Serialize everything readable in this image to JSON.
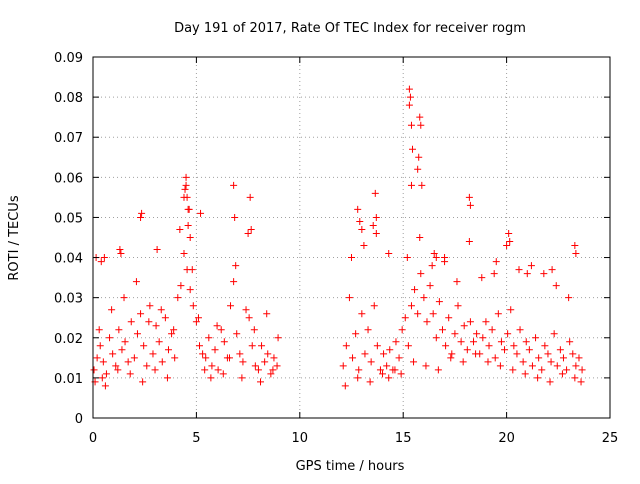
{
  "chart_data": {
    "type": "scatter",
    "title": "Day 191 of 2017, Rate Of TEC Index for receiver rogm",
    "xlabel": "GPS time / hours",
    "ylabel": "ROTI / TECUs",
    "xlim": [
      0,
      25
    ],
    "ylim": [
      0,
      0.09
    ],
    "xticks": [
      0,
      5,
      10,
      15,
      20,
      25
    ],
    "yticks": [
      0,
      0.01,
      0.02,
      0.03,
      0.04,
      0.05,
      0.06,
      0.07,
      0.08,
      0.09
    ],
    "xtick_labels": [
      "0",
      "5",
      "10",
      "15",
      "20",
      "25"
    ],
    "ytick_labels": [
      "0",
      "0.01",
      "0.02",
      "0.03",
      "0.04",
      "0.05",
      "0.06",
      "0.07",
      "0.08",
      "0.09"
    ],
    "grid": true,
    "marker": "+",
    "color": "#ff0000",
    "series": [
      {
        "x": [
          0.05,
          0.2,
          0.35,
          0.5,
          0.65,
          0.8,
          0.95,
          1.1,
          1.25,
          1.4,
          1.55,
          1.7,
          1.85,
          2.0,
          2.15,
          2.3,
          2.45,
          2.6,
          2.75,
          2.9,
          3.05,
          3.2,
          3.35,
          3.5,
          3.65,
          3.8,
          3.95,
          4.1,
          4.25,
          4.4,
          4.55,
          4.7,
          4.85,
          5.0,
          5.15,
          5.3,
          5.45,
          5.6,
          5.75,
          5.9,
          6.05,
          6.2,
          6.35,
          6.5,
          6.65,
          6.8,
          6.95,
          7.1,
          7.25,
          7.4,
          7.55,
          7.7,
          7.85,
          8.0,
          8.15,
          8.3,
          8.45,
          8.6,
          8.75,
          8.9,
          0.1,
          0.3,
          0.45,
          0.6,
          0.9,
          1.2,
          1.5,
          1.8,
          2.1,
          2.4,
          2.7,
          3.0,
          3.3,
          3.6,
          3.9,
          4.2,
          4.4,
          4.5,
          4.6,
          4.7,
          4.8,
          5.1,
          5.4,
          5.7,
          6.0,
          6.3,
          6.6,
          6.9,
          7.2,
          7.5,
          7.8,
          8.1,
          8.4,
          8.7,
          8.95,
          0.15,
          0.4,
          0.55,
          1.3,
          2.3,
          2.35,
          4.5,
          4.55,
          4.45,
          4.6,
          4.65,
          5.2,
          6.8,
          6.85,
          7.6,
          7.65,
          3.1,
          1.35,
          12.1,
          12.25,
          12.4,
          12.55,
          12.7,
          12.85,
          13.0,
          13.15,
          13.3,
          13.45,
          13.6,
          13.75,
          13.9,
          14.05,
          14.2,
          14.35,
          14.5,
          14.65,
          14.8,
          14.95,
          15.1,
          15.25,
          15.4,
          15.55,
          15.7,
          15.85,
          16.0,
          16.15,
          16.3,
          16.45,
          16.6,
          16.75,
          16.9,
          17.05,
          17.2,
          17.35,
          17.5,
          17.65,
          17.8,
          17.95,
          18.1,
          18.25,
          18.4,
          18.55,
          18.7,
          18.85,
          19.0,
          19.15,
          19.3,
          19.45,
          19.6,
          19.75,
          19.9,
          20.05,
          20.2,
          20.35,
          20.5,
          20.65,
          20.8,
          20.95,
          21.1,
          21.25,
          21.4,
          21.55,
          21.7,
          21.85,
          22.0,
          22.15,
          22.3,
          22.45,
          22.6,
          22.75,
          22.9,
          23.05,
          23.2,
          23.35,
          23.5,
          23.65,
          12.2,
          12.5,
          12.8,
          13.1,
          13.4,
          13.7,
          14.0,
          14.3,
          14.6,
          14.9,
          15.2,
          15.5,
          15.8,
          16.1,
          16.4,
          16.7,
          17.0,
          17.3,
          17.6,
          17.9,
          18.2,
          18.5,
          18.8,
          19.1,
          19.4,
          19.7,
          20.0,
          20.3,
          20.6,
          20.9,
          21.2,
          21.5,
          21.8,
          22.1,
          22.4,
          22.7,
          23.0,
          23.3,
          23.6,
          15.3,
          15.35,
          15.4,
          15.45,
          15.3,
          15.4,
          15.8,
          15.85,
          15.75,
          15.7,
          15.9,
          13.65,
          13.7,
          13.55,
          12.8,
          12.9,
          18.2,
          18.25,
          20.1,
          20.15,
          23.3,
          23.35,
          16.5,
          16.6,
          17.0,
          21.0,
          22.2,
          19.5,
          14.3,
          13.0
        ],
        "y": [
          0.012,
          0.015,
          0.018,
          0.014,
          0.011,
          0.02,
          0.016,
          0.013,
          0.022,
          0.017,
          0.019,
          0.014,
          0.024,
          0.015,
          0.021,
          0.026,
          0.018,
          0.013,
          0.028,
          0.016,
          0.023,
          0.019,
          0.014,
          0.025,
          0.017,
          0.021,
          0.015,
          0.03,
          0.033,
          0.041,
          0.037,
          0.032,
          0.028,
          0.024,
          0.018,
          0.016,
          0.015,
          0.02,
          0.013,
          0.017,
          0.012,
          0.022,
          0.019,
          0.015,
          0.028,
          0.034,
          0.021,
          0.016,
          0.014,
          0.027,
          0.025,
          0.018,
          0.013,
          0.012,
          0.018,
          0.014,
          0.016,
          0.011,
          0.015,
          0.013,
          0.009,
          0.022,
          0.01,
          0.008,
          0.027,
          0.012,
          0.03,
          0.011,
          0.034,
          0.009,
          0.024,
          0.012,
          0.027,
          0.01,
          0.022,
          0.047,
          0.055,
          0.058,
          0.052,
          0.045,
          0.037,
          0.025,
          0.012,
          0.01,
          0.023,
          0.011,
          0.015,
          0.038,
          0.01,
          0.046,
          0.022,
          0.009,
          0.026,
          0.012,
          0.02,
          0.04,
          0.039,
          0.04,
          0.042,
          0.05,
          0.051,
          0.06,
          0.055,
          0.057,
          0.048,
          0.052,
          0.051,
          0.058,
          0.05,
          0.055,
          0.047,
          0.042,
          0.041,
          0.013,
          0.018,
          0.03,
          0.015,
          0.021,
          0.012,
          0.026,
          0.016,
          0.022,
          0.014,
          0.028,
          0.018,
          0.012,
          0.016,
          0.013,
          0.017,
          0.012,
          0.019,
          0.015,
          0.022,
          0.025,
          0.018,
          0.028,
          0.032,
          0.026,
          0.036,
          0.03,
          0.024,
          0.033,
          0.026,
          0.02,
          0.029,
          0.022,
          0.018,
          0.025,
          0.016,
          0.021,
          0.028,
          0.019,
          0.023,
          0.017,
          0.024,
          0.019,
          0.021,
          0.016,
          0.02,
          0.024,
          0.018,
          0.022,
          0.015,
          0.026,
          0.019,
          0.017,
          0.021,
          0.027,
          0.018,
          0.016,
          0.022,
          0.014,
          0.019,
          0.017,
          0.013,
          0.02,
          0.015,
          0.012,
          0.018,
          0.016,
          0.014,
          0.021,
          0.013,
          0.017,
          0.015,
          0.012,
          0.019,
          0.016,
          0.013,
          0.015,
          0.012,
          0.008,
          0.04,
          0.01,
          0.043,
          0.009,
          0.046,
          0.011,
          0.01,
          0.012,
          0.011,
          0.04,
          0.014,
          0.045,
          0.013,
          0.038,
          0.012,
          0.04,
          0.015,
          0.034,
          0.014,
          0.044,
          0.016,
          0.035,
          0.014,
          0.036,
          0.013,
          0.043,
          0.012,
          0.037,
          0.011,
          0.038,
          0.01,
          0.036,
          0.009,
          0.033,
          0.011,
          0.03,
          0.01,
          0.009,
          0.082,
          0.08,
          0.073,
          0.067,
          0.078,
          0.058,
          0.075,
          0.073,
          0.065,
          0.062,
          0.058,
          0.056,
          0.05,
          0.048,
          0.052,
          0.049,
          0.055,
          0.053,
          0.046,
          0.044,
          0.043,
          0.041,
          0.041,
          0.04,
          0.039,
          0.036,
          0.037,
          0.039,
          0.041,
          0.047
        ]
      }
    ]
  }
}
